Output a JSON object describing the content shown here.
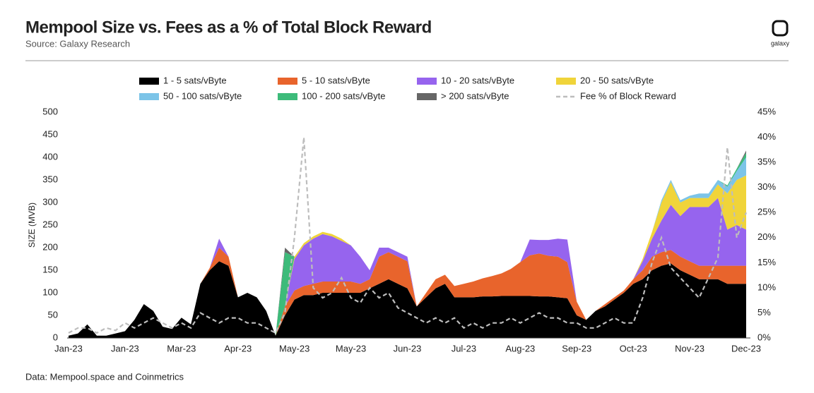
{
  "chart_data": {
    "type": "area",
    "stacked": true,
    "title": "Mempool Size vs. Fees as a % of Total Block Reward",
    "subtitle": "Source: Galaxy Research",
    "source": "Data: Mempool.space and Coinmetrics",
    "logo_text": "galaxy",
    "ylabel": "SIZE (MVB)",
    "categories": [
      "Jan-23",
      null,
      null,
      null,
      null,
      null,
      "Jan-23",
      null,
      null,
      null,
      null,
      null,
      "Mar-23",
      null,
      null,
      null,
      null,
      null,
      "Apr-23",
      null,
      null,
      null,
      null,
      null,
      "May-23",
      null,
      null,
      null,
      null,
      null,
      "May-23",
      null,
      null,
      null,
      null,
      null,
      "Jun-23",
      null,
      null,
      null,
      null,
      null,
      "Jul-23",
      null,
      null,
      null,
      null,
      null,
      "Aug-23",
      null,
      null,
      null,
      null,
      null,
      "Sep-23",
      null,
      null,
      null,
      null,
      null,
      "Oct-23",
      null,
      null,
      null,
      null,
      null,
      "Nov-23",
      null,
      null,
      null,
      null,
      null,
      "Dec-23"
    ],
    "ylim": [
      0,
      500
    ],
    "yticks": [
      0,
      50,
      100,
      150,
      200,
      250,
      300,
      350,
      400,
      450,
      500
    ],
    "y2lim": [
      0,
      45
    ],
    "y2ticks": [
      {
        "value": 0,
        "label": "0%"
      },
      {
        "value": 5,
        "label": "5%"
      },
      {
        "value": 10,
        "label": "10%"
      },
      {
        "value": 15,
        "label": "15%"
      },
      {
        "value": 20,
        "label": "20%"
      },
      {
        "value": 25,
        "label": "25%"
      },
      {
        "value": 30,
        "label": "30%"
      },
      {
        "value": 35,
        "label": "35%"
      },
      {
        "value": 40,
        "label": "40%"
      },
      {
        "value": 45,
        "label": "45%"
      }
    ],
    "grid": false,
    "series": [
      {
        "name": "1 - 5 sats/vByte",
        "color": "#000000",
        "values": [
          5,
          10,
          30,
          5,
          5,
          10,
          15,
          40,
          75,
          60,
          25,
          20,
          45,
          30,
          120,
          150,
          170,
          160,
          90,
          100,
          90,
          60,
          5,
          50,
          85,
          95,
          95,
          100,
          100,
          100,
          100,
          100,
          110,
          120,
          130,
          120,
          110,
          70,
          90,
          110,
          120,
          90,
          90,
          90,
          92,
          92,
          93,
          93,
          93,
          93,
          92,
          92,
          90,
          88,
          50,
          40,
          60,
          70,
          85,
          100,
          120,
          130,
          150,
          160,
          165,
          150,
          140,
          130,
          130,
          130,
          120,
          120,
          120
        ]
      },
      {
        "name": "5 - 10 sats/vByte",
        "color": "#e8642c",
        "values": [
          0,
          0,
          0,
          0,
          0,
          0,
          0,
          0,
          0,
          0,
          0,
          0,
          0,
          0,
          0,
          5,
          30,
          20,
          0,
          0,
          0,
          0,
          0,
          20,
          20,
          20,
          25,
          25,
          25,
          25,
          25,
          20,
          20,
          60,
          60,
          60,
          60,
          0,
          10,
          20,
          20,
          25,
          30,
          35,
          40,
          45,
          50,
          60,
          75,
          90,
          95,
          90,
          90,
          80,
          30,
          0,
          0,
          5,
          5,
          5,
          10,
          20,
          30,
          30,
          30,
          30,
          30,
          30,
          30,
          30,
          40,
          40,
          40
        ]
      },
      {
        "name": "10 - 20 sats/vByte",
        "color": "#9664ee",
        "values": [
          0,
          0,
          0,
          0,
          0,
          0,
          0,
          0,
          0,
          0,
          0,
          0,
          0,
          0,
          0,
          0,
          20,
          0,
          0,
          0,
          0,
          0,
          0,
          0,
          70,
          90,
          100,
          105,
          100,
          90,
          80,
          60,
          20,
          20,
          10,
          10,
          10,
          0,
          0,
          0,
          0,
          0,
          0,
          0,
          0,
          0,
          0,
          0,
          0,
          35,
          30,
          35,
          40,
          50,
          0,
          0,
          0,
          0,
          0,
          0,
          0,
          20,
          40,
          70,
          100,
          90,
          120,
          130,
          130,
          150,
          80,
          90,
          80
        ]
      },
      {
        "name": "20 - 50 sats/vByte",
        "color": "#f0d43a",
        "values": [
          0,
          0,
          0,
          0,
          0,
          0,
          0,
          0,
          0,
          0,
          0,
          0,
          0,
          0,
          0,
          0,
          0,
          0,
          0,
          0,
          0,
          0,
          0,
          0,
          5,
          5,
          5,
          5,
          5,
          5,
          0,
          0,
          0,
          0,
          0,
          0,
          0,
          0,
          0,
          0,
          0,
          0,
          0,
          0,
          0,
          0,
          0,
          0,
          0,
          0,
          0,
          0,
          0,
          0,
          0,
          0,
          0,
          0,
          0,
          0,
          0,
          5,
          15,
          40,
          50,
          30,
          20,
          20,
          20,
          30,
          80,
          100,
          120
        ]
      },
      {
        "name": "50 - 100 sats/vByte",
        "color": "#7cc4e8",
        "values": [
          0,
          0,
          0,
          0,
          0,
          0,
          0,
          0,
          0,
          0,
          0,
          0,
          0,
          0,
          0,
          0,
          0,
          0,
          0,
          0,
          0,
          0,
          0,
          0,
          0,
          0,
          0,
          0,
          0,
          0,
          0,
          0,
          0,
          0,
          0,
          0,
          0,
          0,
          0,
          0,
          0,
          0,
          0,
          0,
          0,
          0,
          0,
          0,
          0,
          0,
          0,
          0,
          0,
          0,
          0,
          0,
          0,
          0,
          0,
          0,
          0,
          0,
          0,
          5,
          5,
          5,
          5,
          10,
          10,
          10,
          15,
          20,
          40
        ]
      },
      {
        "name": "100 - 200 sats/vByte",
        "color": "#3dbb7a",
        "values": [
          0,
          0,
          0,
          0,
          0,
          0,
          0,
          0,
          0,
          0,
          0,
          0,
          0,
          0,
          0,
          0,
          0,
          0,
          0,
          0,
          0,
          0,
          0,
          120,
          0,
          0,
          0,
          0,
          0,
          0,
          0,
          0,
          0,
          0,
          0,
          0,
          0,
          0,
          0,
          0,
          0,
          0,
          0,
          0,
          0,
          0,
          0,
          0,
          0,
          0,
          0,
          0,
          0,
          0,
          0,
          0,
          0,
          0,
          0,
          0,
          0,
          0,
          0,
          0,
          0,
          0,
          0,
          0,
          0,
          0,
          3,
          5,
          10
        ]
      },
      {
        "name": "> 200 sats/vByte",
        "color": "#666666",
        "values": [
          0,
          0,
          0,
          0,
          0,
          0,
          0,
          0,
          0,
          0,
          0,
          0,
          0,
          0,
          0,
          0,
          0,
          0,
          0,
          0,
          0,
          0,
          0,
          10,
          0,
          0,
          0,
          0,
          0,
          0,
          0,
          0,
          0,
          0,
          0,
          0,
          0,
          0,
          0,
          0,
          0,
          0,
          0,
          0,
          0,
          0,
          0,
          0,
          0,
          0,
          0,
          0,
          0,
          0,
          0,
          0,
          0,
          0,
          0,
          0,
          0,
          0,
          0,
          0,
          0,
          0,
          0,
          0,
          0,
          0,
          0,
          0,
          5
        ]
      },
      {
        "name": "Fee % of Block Reward",
        "color": "#bdbdbd",
        "type": "line",
        "dashed": true,
        "axis": "y2",
        "values": [
          1,
          2,
          2,
          1,
          2,
          1.5,
          3,
          2,
          3,
          4,
          3,
          2,
          3,
          2,
          5,
          4,
          3,
          4,
          4,
          3,
          3,
          2,
          1,
          5,
          20,
          40,
          10,
          8,
          9,
          12,
          8,
          7,
          10,
          8,
          9,
          6,
          5,
          4,
          3,
          4,
          3,
          4,
          2,
          3,
          2,
          3,
          3,
          4,
          3,
          4,
          5,
          4,
          4,
          3,
          3,
          2,
          2,
          3,
          4,
          3,
          3,
          8,
          15,
          20,
          14,
          12,
          10,
          8,
          12,
          16,
          38,
          20,
          25
        ]
      }
    ]
  }
}
